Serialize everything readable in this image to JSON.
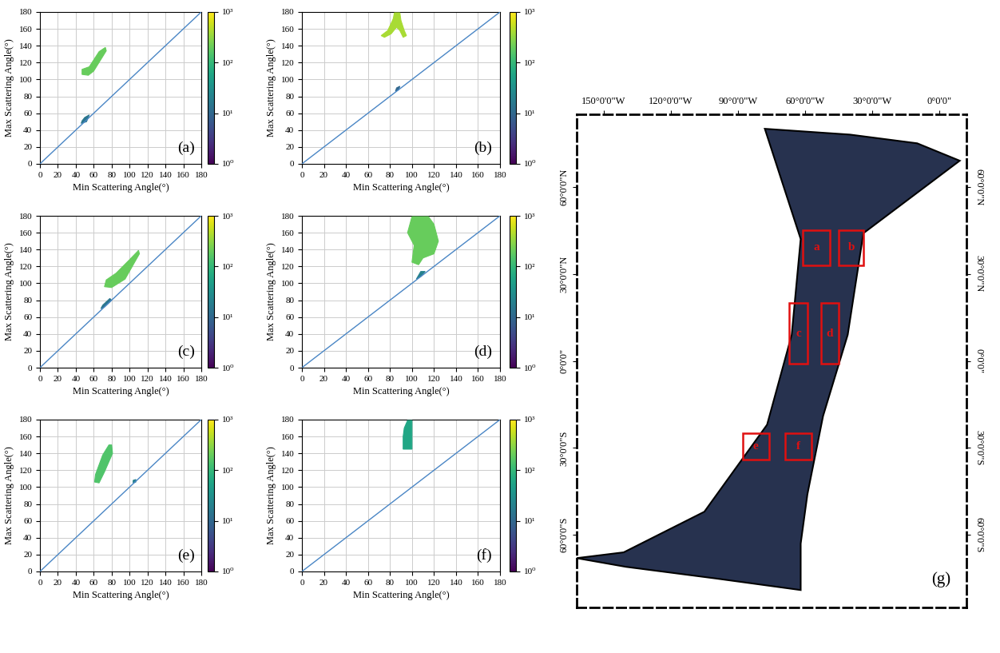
{
  "chart_data": [
    {
      "type": "heatmap",
      "panel": "(a)",
      "xlabel": "Min Scattering Angle(°)",
      "ylabel": "Max Scattering Angle(°)",
      "xlim": [
        0,
        180
      ],
      "ylim": [
        0,
        180
      ],
      "xticks": [
        0,
        20,
        40,
        60,
        80,
        100,
        120,
        140,
        160,
        180
      ],
      "yticks": [
        0,
        20,
        40,
        60,
        80,
        100,
        120,
        140,
        160,
        180
      ],
      "grid": true,
      "log": true,
      "lines": [
        {
          "x": [
            0,
            180
          ],
          "values": [
            0,
            180
          ],
          "color": "#4a86c5"
        }
      ],
      "regions": [
        {
          "polygon": [
            [
              47,
              106
            ],
            [
              54,
              105
            ],
            [
              60,
              110
            ],
            [
              74,
              134
            ],
            [
              73,
              138
            ],
            [
              66,
              133
            ],
            [
              55,
              115
            ],
            [
              47,
              112
            ]
          ],
          "value": 200
        },
        {
          "polygon": [
            [
              46,
              48
            ],
            [
              52,
              50
            ],
            [
              55,
              58
            ],
            [
              50,
              55
            ],
            [
              47,
              51
            ]
          ],
          "value": 15
        }
      ],
      "colorbar": {
        "range": [
          1,
          1000
        ],
        "ticks": [
          {
            "value": 1,
            "label": "10⁰"
          },
          {
            "value": 10,
            "label": "10¹"
          },
          {
            "value": 100,
            "label": "10²"
          },
          {
            "value": 1000,
            "label": "10³"
          }
        ]
      }
    },
    {
      "type": "heatmap",
      "panel": "(b)",
      "xlabel": "Min Scattering Angle(°)",
      "ylabel": "Max Scattering Angle(°)",
      "xlim": [
        0,
        180
      ],
      "ylim": [
        0,
        180
      ],
      "xticks": [
        0,
        20,
        40,
        60,
        80,
        100,
        120,
        140,
        160,
        180
      ],
      "yticks": [
        0,
        20,
        40,
        60,
        80,
        100,
        120,
        140,
        160,
        180
      ],
      "grid": true,
      "log": true,
      "lines": [
        {
          "x": [
            0,
            180
          ],
          "values": [
            0,
            180
          ],
          "color": "#4a86c5"
        }
      ],
      "regions": [
        {
          "polygon": [
            [
              72,
              152
            ],
            [
              78,
              158
            ],
            [
              83,
              172
            ],
            [
              84,
              179
            ],
            [
              89,
              179
            ],
            [
              90,
              170
            ],
            [
              93,
              158
            ],
            [
              95,
              152
            ],
            [
              92,
              150
            ],
            [
              89,
              158
            ],
            [
              86,
              162
            ],
            [
              81,
              154
            ],
            [
              75,
              150
            ]
          ],
          "value": 400
        },
        {
          "polygon": [
            [
              85,
              86
            ],
            [
              88,
              88
            ],
            [
              89,
              92
            ],
            [
              86,
              90
            ]
          ],
          "value": 10
        }
      ],
      "colorbar": {
        "range": [
          1,
          1000
        ],
        "ticks": [
          {
            "value": 1,
            "label": "10⁰"
          },
          {
            "value": 10,
            "label": "10¹"
          },
          {
            "value": 100,
            "label": "10²"
          },
          {
            "value": 1000,
            "label": "10³"
          }
        ]
      }
    },
    {
      "type": "heatmap",
      "panel": "(c)",
      "xlabel": "Min Scattering Angle(°)",
      "ylabel": "Max Scattering Angle(°)",
      "xlim": [
        0,
        180
      ],
      "ylim": [
        0,
        180
      ],
      "xticks": [
        0,
        20,
        40,
        60,
        80,
        100,
        120,
        140,
        160,
        180
      ],
      "yticks": [
        0,
        20,
        40,
        60,
        80,
        100,
        120,
        140,
        160,
        180
      ],
      "grid": true,
      "log": true,
      "lines": [
        {
          "x": [
            0,
            180
          ],
          "values": [
            0,
            180
          ],
          "color": "#4a86c5"
        }
      ],
      "regions": [
        {
          "polygon": [
            [
              72,
              96
            ],
            [
              80,
              95
            ],
            [
              95,
              105
            ],
            [
              111,
              135
            ],
            [
              110,
              139
            ],
            [
              100,
              128
            ],
            [
              85,
              112
            ],
            [
              74,
              104
            ]
          ],
          "value": 200
        },
        {
          "polygon": [
            [
              68,
              70
            ],
            [
              72,
              72
            ],
            [
              80,
              80
            ],
            [
              78,
              82
            ],
            [
              70,
              74
            ]
          ],
          "value": 15
        }
      ],
      "colorbar": {
        "range": [
          1,
          1000
        ],
        "ticks": [
          {
            "value": 1,
            "label": "10⁰"
          },
          {
            "value": 10,
            "label": "10¹"
          },
          {
            "value": 100,
            "label": "10²"
          },
          {
            "value": 1000,
            "label": "10³"
          }
        ]
      }
    },
    {
      "type": "heatmap",
      "panel": "(d)",
      "xlabel": "Min Scattering Angle(°)",
      "ylabel": "Max Scattering Angle(°)",
      "xlim": [
        0,
        180
      ],
      "ylim": [
        0,
        180
      ],
      "xticks": [
        0,
        20,
        40,
        60,
        80,
        100,
        120,
        140,
        160,
        180
      ],
      "yticks": [
        0,
        20,
        40,
        60,
        80,
        100,
        120,
        140,
        160,
        180
      ],
      "grid": true,
      "log": true,
      "lines": [
        {
          "x": [
            0,
            180
          ],
          "values": [
            0,
            180
          ],
          "color": "#4a86c5"
        }
      ],
      "regions": [
        {
          "polygon": [
            [
              96,
              160
            ],
            [
              100,
              179
            ],
            [
              115,
              179
            ],
            [
              120,
              170
            ],
            [
              124,
              150
            ],
            [
              120,
              135
            ],
            [
              110,
              130
            ],
            [
              106,
              122
            ],
            [
              100,
              125
            ],
            [
              102,
              145
            ]
          ],
          "value": 200
        },
        {
          "polygon": [
            [
              104,
              105
            ],
            [
              108,
              108
            ],
            [
              112,
              114
            ],
            [
              108,
              114
            ]
          ],
          "value": 20
        }
      ],
      "colorbar": {
        "range": [
          1,
          1000
        ],
        "ticks": [
          {
            "value": 1,
            "label": "10⁰"
          },
          {
            "value": 10,
            "label": "10¹"
          },
          {
            "value": 100,
            "label": "10²"
          },
          {
            "value": 1000,
            "label": "10³"
          }
        ]
      }
    },
    {
      "type": "heatmap",
      "panel": "(e)",
      "xlabel": "Min Scattering Angle(°)",
      "ylabel": "Max Scattering Angle(°)",
      "xlim": [
        0,
        180
      ],
      "ylim": [
        0,
        180
      ],
      "xticks": [
        0,
        20,
        40,
        60,
        80,
        100,
        120,
        140,
        160,
        180
      ],
      "yticks": [
        0,
        20,
        40,
        60,
        80,
        100,
        120,
        140,
        160,
        180
      ],
      "grid": true,
      "log": true,
      "lines": [
        {
          "x": [
            0,
            180
          ],
          "values": [
            0,
            180
          ],
          "color": "#4a86c5"
        }
      ],
      "regions": [
        {
          "polygon": [
            [
              61,
              106
            ],
            [
              66,
              105
            ],
            [
              72,
              118
            ],
            [
              81,
              140
            ],
            [
              80,
              150
            ],
            [
              77,
              150
            ],
            [
              70,
              138
            ],
            [
              62,
              115
            ]
          ],
          "value": 150
        },
        {
          "polygon": [
            [
              104,
              105
            ],
            [
              107,
              106
            ],
            [
              107,
              109
            ],
            [
              104,
              108
            ]
          ],
          "value": 20
        }
      ],
      "colorbar": {
        "range": [
          1,
          1000
        ],
        "ticks": [
          {
            "value": 1,
            "label": "10⁰"
          },
          {
            "value": 10,
            "label": "10¹"
          },
          {
            "value": 100,
            "label": "10²"
          },
          {
            "value": 1000,
            "label": "10³"
          }
        ]
      }
    },
    {
      "type": "heatmap",
      "panel": "(f)",
      "xlabel": "Min Scattering Angle(°)",
      "ylabel": "Max Scattering Angle(°)",
      "xlim": [
        0,
        180
      ],
      "ylim": [
        0,
        180
      ],
      "xticks": [
        0,
        20,
        40,
        60,
        80,
        100,
        120,
        140,
        160,
        180
      ],
      "yticks": [
        0,
        20,
        40,
        60,
        80,
        100,
        120,
        140,
        160,
        180
      ],
      "grid": true,
      "log": true,
      "lines": [
        {
          "x": [
            0,
            180
          ],
          "values": [
            0,
            180
          ],
          "color": "#4a86c5"
        }
      ],
      "regions": [
        {
          "polygon": [
            [
              92,
              145
            ],
            [
              100,
              145
            ],
            [
              100,
              179
            ],
            [
              96,
              179
            ],
            [
              93,
              170
            ],
            [
              92,
              160
            ]
          ],
          "value": 60
        }
      ],
      "colorbar": {
        "range": [
          1,
          1000
        ],
        "ticks": [
          {
            "value": 1,
            "label": "10⁰"
          },
          {
            "value": 10,
            "label": "10¹"
          },
          {
            "value": 100,
            "label": "10²"
          },
          {
            "value": 1000,
            "label": "10³"
          }
        ]
      }
    },
    {
      "type": "map",
      "panel": "(g)",
      "xlim": [
        -162,
        12
      ],
      "ylim": [
        -85,
        85
      ],
      "xticks": [
        {
          "value": -150,
          "label": "150°0'0\"W"
        },
        {
          "value": -120,
          "label": "120°0'0\"W"
        },
        {
          "value": -90,
          "label": "90°0'0\"W"
        },
        {
          "value": -60,
          "label": "60°0'0\"W"
        },
        {
          "value": -30,
          "label": "30°0'0\"W"
        },
        {
          "value": 0,
          "label": "0°0'0\""
        }
      ],
      "yticks": [
        {
          "value": -60,
          "label": "60°0'0\"S"
        },
        {
          "value": -30,
          "label": "30°0'0\"S"
        },
        {
          "value": 0,
          "label": "0°0'0\""
        },
        {
          "value": 30,
          "label": "30°0'0\"N"
        },
        {
          "value": 60,
          "label": "60°0'0\"N"
        }
      ],
      "swath": {
        "color": "#27324f",
        "polygon": [
          [
            -78,
            80
          ],
          [
            -40,
            78
          ],
          [
            -10,
            75
          ],
          [
            9,
            69
          ],
          [
            -34,
            44
          ],
          [
            -41,
            9
          ],
          [
            -52,
            -19
          ],
          [
            -59,
            -46
          ],
          [
            -62,
            -63
          ],
          [
            -62,
            -79
          ],
          [
            -100,
            -75
          ],
          [
            -140,
            -71
          ],
          [
            -162,
            -68
          ],
          [
            -141,
            -66
          ],
          [
            -105,
            -52
          ],
          [
            -77,
            -22
          ],
          [
            -66,
            9
          ],
          [
            -62,
            42
          ]
        ]
      },
      "regions": [
        {
          "label": "a",
          "lon": [
            -61,
            -49
          ],
          "lat": [
            33,
            45
          ],
          "color": "#e01010"
        },
        {
          "label": "b",
          "lon": [
            -45,
            -34
          ],
          "lat": [
            33,
            45
          ],
          "color": "#e01010"
        },
        {
          "label": "c",
          "lon": [
            -67,
            -59
          ],
          "lat": [
            -1,
            20
          ],
          "color": "#e01010"
        },
        {
          "label": "d",
          "lon": [
            -53,
            -45
          ],
          "lat": [
            -1,
            20
          ],
          "color": "#e01010"
        },
        {
          "label": "e",
          "lon": [
            -88,
            -76
          ],
          "lat": [
            -34,
            -25
          ],
          "color": "#e01010"
        },
        {
          "label": "f",
          "lon": [
            -69,
            -57
          ],
          "lat": [
            -34,
            -25
          ],
          "color": "#e01010"
        }
      ]
    }
  ]
}
